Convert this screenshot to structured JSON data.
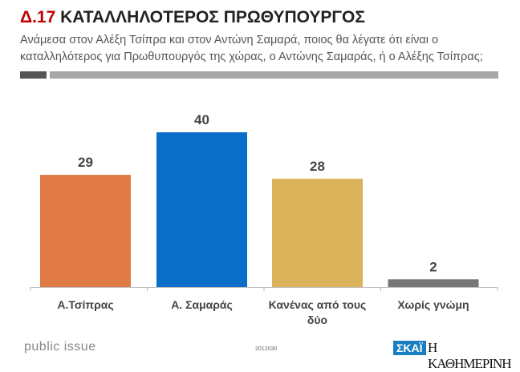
{
  "header": {
    "number": "Δ.17",
    "title": "ΚΑΤΑΛΛΗΛΟΤΕΡΟΣ ΠΡΩΘΥΠΟΥΡΓΟΣ",
    "subtitle": "Ανάμεσα στον Αλέξη Τσίπρα και στον Αντώνη Σαμαρά, ποιος θα λέγατε ότι είναι ο καταλληλότερος για Πρωθυπουργός της χώρας, ο Αντώνης Σαμαράς, ή ο Αλέξης Τσίπρας;"
  },
  "chart_data": {
    "type": "bar",
    "title": "ΚΑΤΑΛΛΗΛΟΤΕΡΟΣ ΠΡΩΘΥΠΟΥΡΓΟΣ",
    "categories": [
      [
        "Α.Τσίπρας"
      ],
      [
        "Α. Σαμαράς"
      ],
      [
        "Κανένας από τους",
        "δύο"
      ],
      [
        "Χωρίς γνώμη"
      ]
    ],
    "values": [
      29,
      40,
      28,
      2
    ],
    "colors": [
      "#E07B45",
      "#0A6EC8",
      "#D9B25A",
      "#767676"
    ],
    "ylim": [
      0,
      40
    ],
    "xlabel": "",
    "ylabel": ""
  },
  "footer": {
    "brand": "public issue",
    "code": "2012030",
    "logo1": "ΣΚΑΪ",
    "logo2": "Η ΚΑΘΗΜΕΡΙΝΗ"
  }
}
